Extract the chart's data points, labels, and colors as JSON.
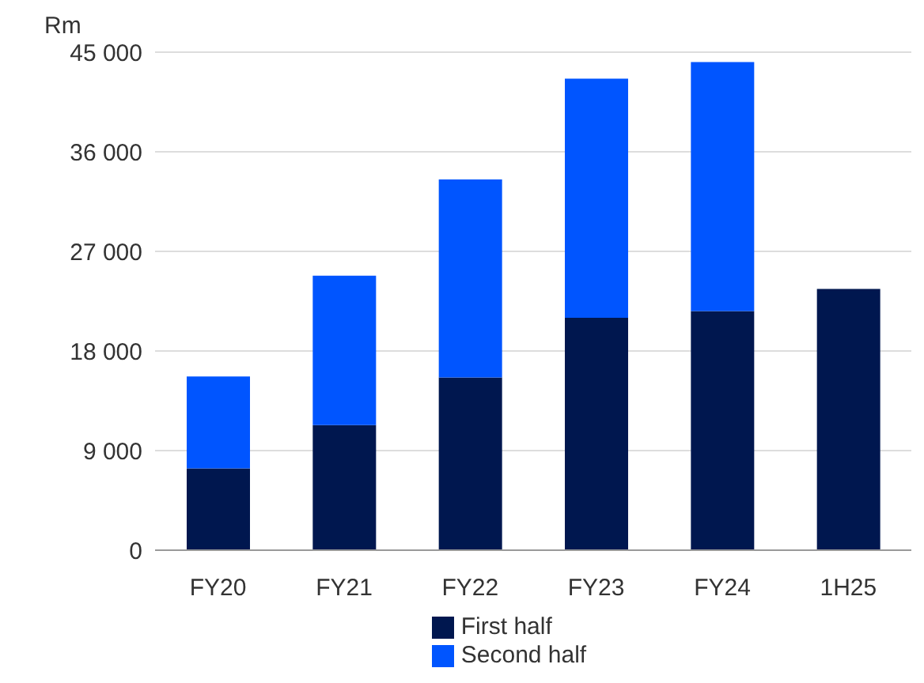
{
  "chart_data": {
    "type": "bar",
    "stacked": true,
    "ylabel": "Rm",
    "categories": [
      "FY20",
      "FY21",
      "FY22",
      "FY23",
      "FY24",
      "1H25"
    ],
    "series": [
      {
        "name": "First half",
        "color": "#00174f",
        "values": [
          7400,
          11300,
          15600,
          21000,
          21600,
          23600
        ]
      },
      {
        "name": "Second half",
        "color": "#0055ff",
        "values": [
          8300,
          13500,
          17900,
          21600,
          22500,
          null
        ]
      }
    ],
    "ylim": [
      0,
      45000
    ],
    "yticks": [
      0,
      {
        "value": 9000,
        "label": "9 000"
      },
      {
        "value": 18000,
        "label": "18 000"
      },
      {
        "value": 27000,
        "label": "27 000"
      },
      {
        "value": 36000,
        "label": "36 000"
      },
      {
        "value": 45000,
        "label": "45 000"
      }
    ],
    "grid": "y",
    "legend": "bottom"
  }
}
